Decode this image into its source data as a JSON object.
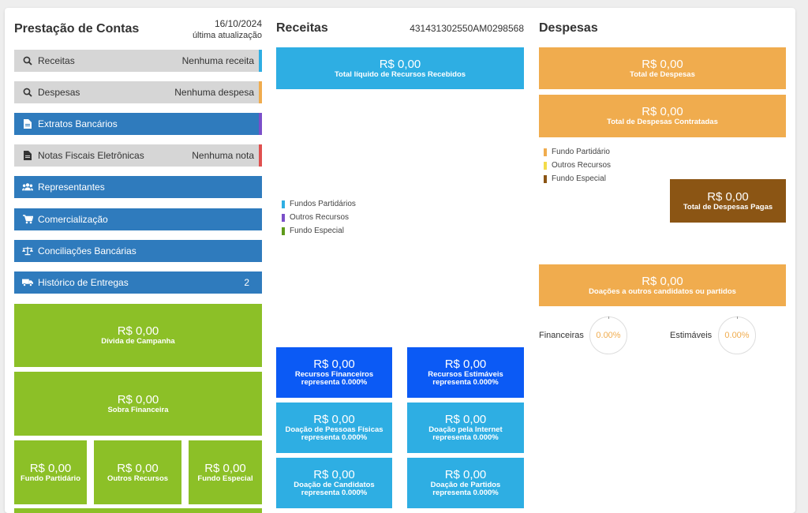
{
  "prestacao": {
    "title": "Prestação de Contas",
    "date": "16/10/2024",
    "date_sub": "última atualização",
    "menu": [
      {
        "label": "Receitas",
        "right": "Nenhuma receita",
        "icon": "search-icon"
      },
      {
        "label": "Despesas",
        "right": "Nenhuma despesa",
        "icon": "search-icon"
      },
      {
        "label": "Extratos Bancários",
        "right": "",
        "icon": "document-icon"
      },
      {
        "label": "Notas Fiscais Eletrônicas",
        "right": "Nenhuma nota",
        "icon": "receipt-icon"
      },
      {
        "label": "Representantes",
        "right": "",
        "icon": "users-icon"
      },
      {
        "label": "Comercialização",
        "right": "",
        "icon": "cart-icon"
      },
      {
        "label": "Conciliações Bancárias",
        "right": "",
        "icon": "scale-icon"
      },
      {
        "label": "Histórico de Entregas",
        "right": "2",
        "icon": "truck-icon"
      }
    ],
    "tiles": {
      "divida": {
        "value": "R$ 0,00",
        "label": "Dívida de Campanha"
      },
      "sobra": {
        "value": "R$ 0,00",
        "label": "Sobra Financeira"
      },
      "fundo_partidario": {
        "value": "R$ 0,00",
        "label": "Fundo Partidário"
      },
      "outros_recursos": {
        "value": "R$ 0,00",
        "label": "Outros Recursos"
      },
      "fundo_especial": {
        "value": "R$ 0,00",
        "label": "Fundo Especial"
      }
    }
  },
  "receitas": {
    "title": "Receitas",
    "code": "431431302550AM0298568",
    "total": {
      "value": "R$ 0,00",
      "label": "Total líquido de Recursos Recebidos"
    },
    "legend": [
      {
        "label": "Fundos Partidários",
        "color": "#2eaee3"
      },
      {
        "label": "Outros Recursos",
        "color": "#7b4fc9"
      },
      {
        "label": "Fundo Especial",
        "color": "#5e9a1b"
      }
    ],
    "tiles": [
      {
        "value": "R$ 0,00",
        "line1": "Recursos Financeiros",
        "line2": "representa 0.000%"
      },
      {
        "value": "R$ 0,00",
        "line1": "Recursos Estimáveis",
        "line2": "representa 0.000%"
      },
      {
        "value": "R$ 0,00",
        "line1": "Doação de Pessoas Físicas",
        "line2": "representa 0.000%"
      },
      {
        "value": "R$ 0,00",
        "line1": "Doação pela Internet",
        "line2": "representa 0.000%"
      },
      {
        "value": "R$ 0,00",
        "line1": "Doação de Candidatos",
        "line2": "representa 0.000%"
      },
      {
        "value": "R$ 0,00",
        "line1": "Doação de Partidos",
        "line2": "representa 0.000%"
      }
    ]
  },
  "despesas": {
    "title": "Despesas",
    "total": {
      "value": "R$ 0,00",
      "label": "Total de Despesas"
    },
    "contratadas": {
      "value": "R$ 0,00",
      "label": "Total de Despesas Contratadas"
    },
    "legend": [
      {
        "label": "Fundo Partidário",
        "color": "#f0ac4e"
      },
      {
        "label": "Outros Recursos",
        "color": "#f3dc4a"
      },
      {
        "label": "Fundo Especial",
        "color": "#8b5514"
      }
    ],
    "pagas": {
      "value": "R$ 0,00",
      "label": "Total de Despesas Pagas"
    },
    "doacoes": {
      "value": "R$ 0,00",
      "label": "Doações a outros candidatos ou partidos"
    },
    "gauges": [
      {
        "label": "Financeiras",
        "value": "0.00%"
      },
      {
        "label": "Estimáveis",
        "value": "0.00%"
      }
    ]
  },
  "colors": {
    "green": "#8cc027",
    "cyan": "#2eaee3",
    "dark_blue": "#0b5af5",
    "orange": "#f0ac4e",
    "brown": "#8b5514",
    "menu_blue": "#2f7bbd",
    "menu_gray": "#d6d6d6",
    "strip_receitas": "#2eaee3",
    "strip_despesas": "#f0ac4e",
    "strip_extratos": "#7b4fc9",
    "strip_notas": "#e0504f"
  }
}
